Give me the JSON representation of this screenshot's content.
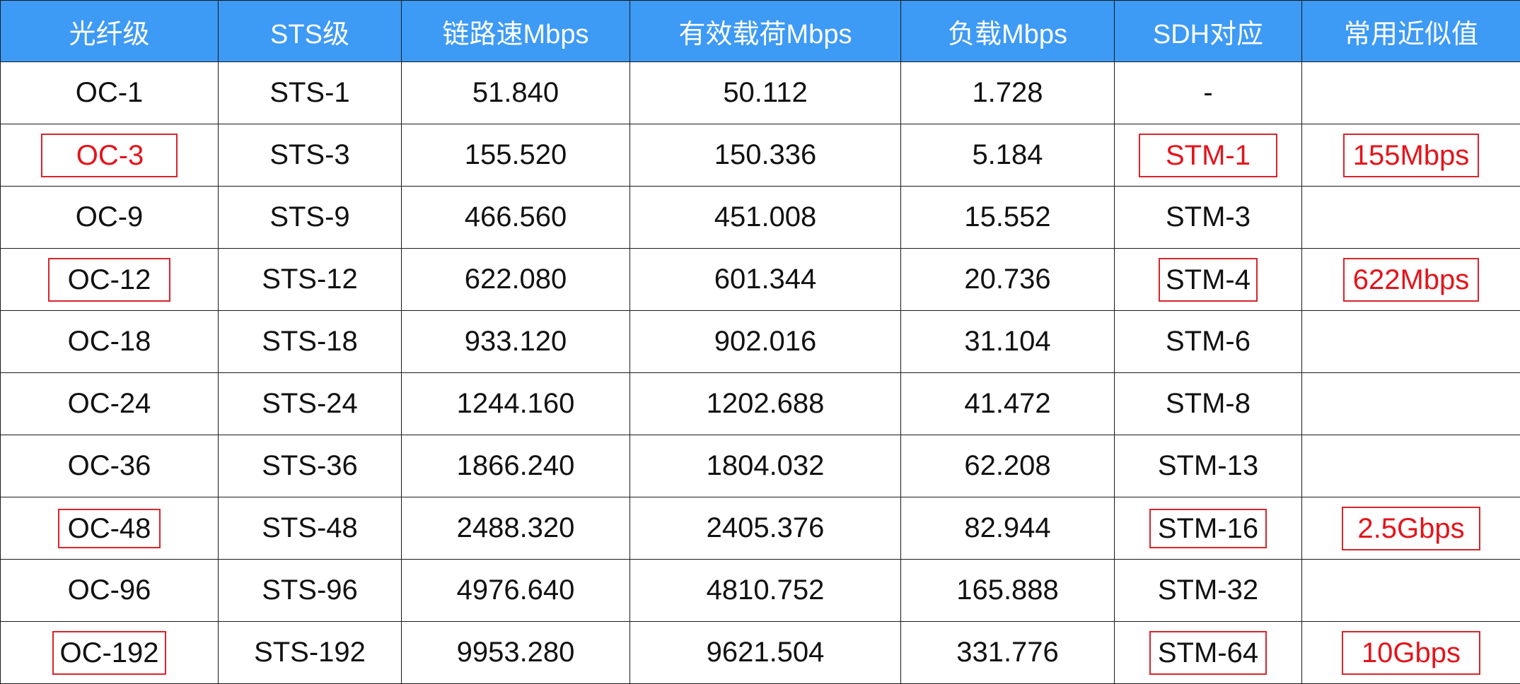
{
  "headers": [
    "光纤级",
    "STS级",
    "链路速Mbps",
    "有效载荷Mbps",
    "负载Mbps",
    "SDH对应",
    "常用近似值"
  ],
  "colors": {
    "header_bg": "#3d9af5",
    "header_text": "#ffffff",
    "highlight": "#e3141c",
    "highlight_box": "#d8252c"
  },
  "rows": [
    {
      "oc": "OC-1",
      "sts": "STS-1",
      "link": "51.840",
      "payload": "50.112",
      "overhead": "1.728",
      "sdh": "-",
      "approx": ""
    },
    {
      "oc": "OC-3",
      "sts": "STS-3",
      "link": "155.520",
      "payload": "150.336",
      "overhead": "5.184",
      "sdh": "STM-1",
      "approx": "155Mbps"
    },
    {
      "oc": "OC-9",
      "sts": "STS-9",
      "link": "466.560",
      "payload": "451.008",
      "overhead": "15.552",
      "sdh": "STM-3",
      "approx": ""
    },
    {
      "oc": "OC-12",
      "sts": "STS-12",
      "link": "622.080",
      "payload": "601.344",
      "overhead": "20.736",
      "sdh": "STM-4",
      "approx": "622Mbps"
    },
    {
      "oc": "OC-18",
      "sts": "STS-18",
      "link": "933.120",
      "payload": "902.016",
      "overhead": "31.104",
      "sdh": "STM-6",
      "approx": ""
    },
    {
      "oc": "OC-24",
      "sts": "STS-24",
      "link": "1244.160",
      "payload": "1202.688",
      "overhead": "41.472",
      "sdh": "STM-8",
      "approx": ""
    },
    {
      "oc": "OC-36",
      "sts": "STS-36",
      "link": "1866.240",
      "payload": "1804.032",
      "overhead": "62.208",
      "sdh": "STM-13",
      "approx": ""
    },
    {
      "oc": "OC-48",
      "sts": "STS-48",
      "link": "2488.320",
      "payload": "2405.376",
      "overhead": "82.944",
      "sdh": "STM-16",
      "approx": "2.5Gbps"
    },
    {
      "oc": "OC-96",
      "sts": "STS-96",
      "link": "4976.640",
      "payload": "4810.752",
      "overhead": "165.888",
      "sdh": "STM-32",
      "approx": ""
    },
    {
      "oc": "OC-192",
      "sts": "STS-192",
      "link": "9953.280",
      "payload": "9621.504",
      "overhead": "331.776",
      "sdh": "STM-64",
      "approx": "10Gbps"
    }
  ]
}
